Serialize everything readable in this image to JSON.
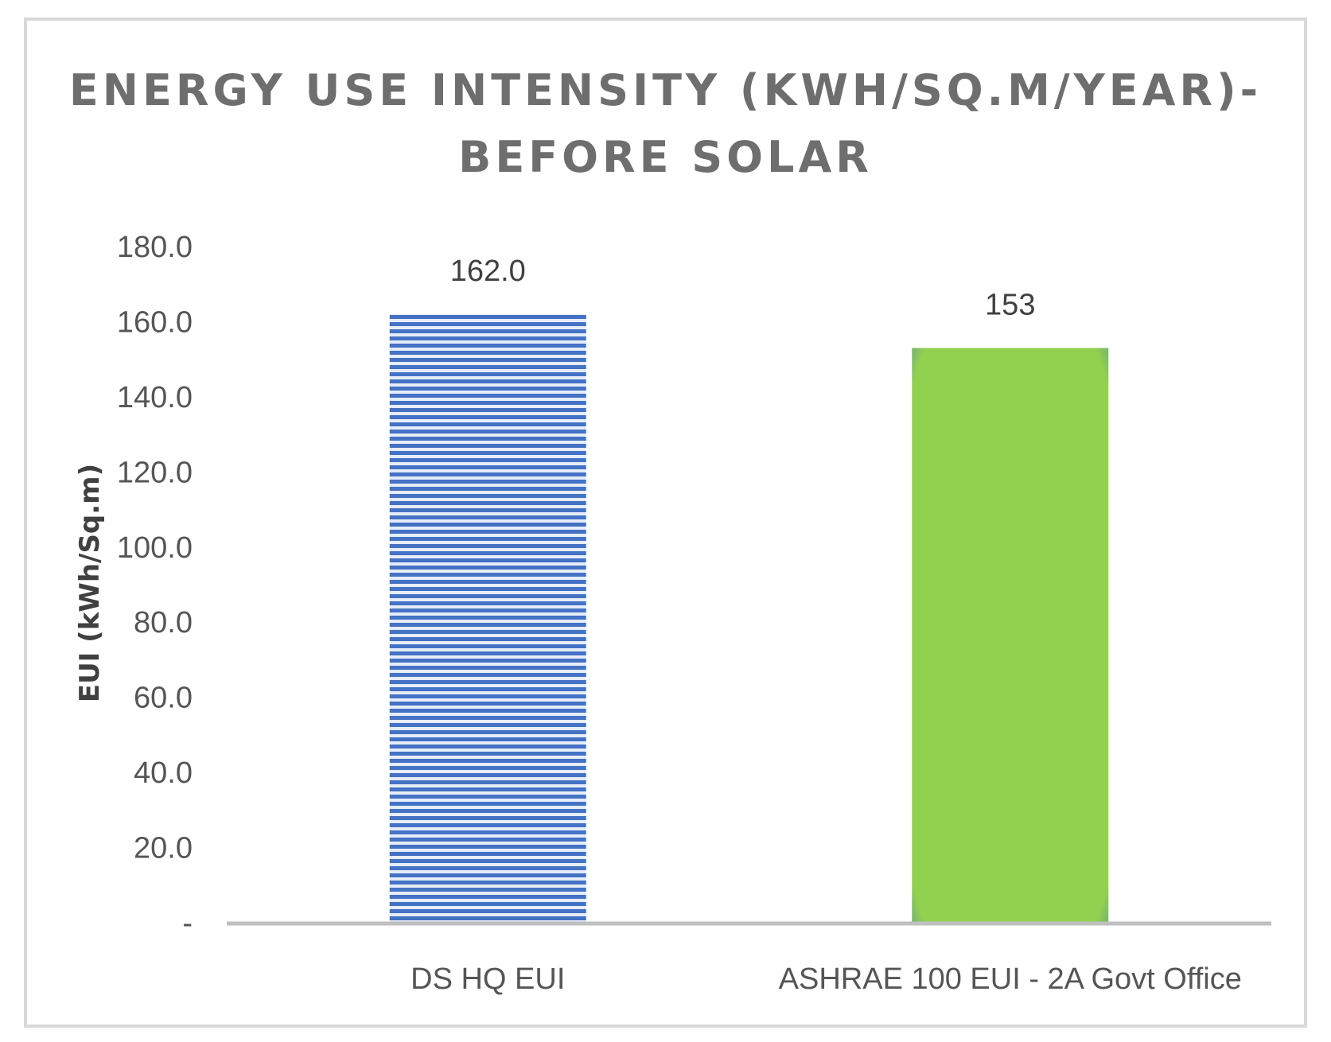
{
  "chart_data": {
    "type": "bar",
    "title_line1": "ENERGY USE INTENSITY (KWH/SQ.M/YEAR)-",
    "title_line2": "BEFORE SOLAR",
    "xlabel": "",
    "ylabel": "EUI (kWh/Sq.m)",
    "categories": [
      "DS HQ EUI",
      "ASHRAE 100 EUI - 2A Govt Office"
    ],
    "values": [
      162.0,
      153
    ],
    "data_labels": [
      "162.0",
      "153"
    ],
    "ylim": [
      0,
      180
    ],
    "y_ticks": [
      0,
      20,
      40,
      60,
      80,
      100,
      120,
      140,
      160,
      180
    ],
    "y_tick_labels": [
      "-",
      "20.0",
      "40.0",
      "60.0",
      "80.0",
      "100.0",
      "120.0",
      "140.0",
      "160.0",
      "180.0"
    ],
    "grid": false,
    "legend": "none",
    "colors": [
      "#4472c4",
      "#92d050"
    ]
  }
}
